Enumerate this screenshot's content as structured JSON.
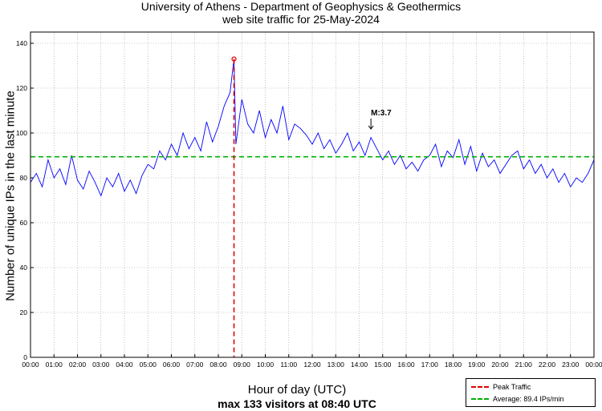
{
  "title": "University of Athens - Department of Geophysics & Geothermics",
  "subtitle": "web site traffic for 25-May-2024",
  "ylabel": "Number of unique IPs in the last minute",
  "xlabel": "Hour of day (UTC)",
  "summary": "max 133 visitors at 08:40 UTC",
  "annotation": "M:3.7",
  "legend": {
    "peak": "Peak Traffic",
    "average": "Average: 89.4 IPs/min"
  },
  "colors": {
    "series": "#0000ff",
    "peak": "#e00000",
    "average": "#00b000",
    "grid": "#9a9a9a"
  },
  "chart_data": {
    "type": "line",
    "title": "University of Athens - Department of Geophysics & Geothermics",
    "subtitle": "web site traffic for 25-May-2024",
    "xlabel": "Hour of day (UTC)",
    "ylabel": "Number of unique IPs in the last minute",
    "xlim": [
      0,
      24
    ],
    "ylim": [
      0,
      145
    ],
    "xticks": [
      "00:00",
      "01:00",
      "02:00",
      "03:00",
      "04:00",
      "05:00",
      "06:00",
      "07:00",
      "08:00",
      "09:00",
      "10:00",
      "11:00",
      "12:00",
      "13:00",
      "14:00",
      "15:00",
      "16:00",
      "17:00",
      "18:00",
      "19:00",
      "20:00",
      "21:00",
      "22:00",
      "23:00",
      "00:00"
    ],
    "yticks": [
      0,
      20,
      40,
      60,
      80,
      100,
      120,
      140
    ],
    "grid": true,
    "legend_position": "bottom-right",
    "peak": {
      "x": 8.667,
      "y": 133,
      "label": "Peak Traffic"
    },
    "average": {
      "y": 89.4,
      "label": "Average: 89.4 IPs/min"
    },
    "marker": {
      "x": 14.5,
      "y": 100,
      "label": "M:3.7"
    },
    "series": [
      {
        "x": [
          0,
          0.25,
          0.5,
          0.75,
          1,
          1.25,
          1.5,
          1.75,
          2,
          2.25,
          2.5,
          2.75,
          3,
          3.25,
          3.5,
          3.75,
          4,
          4.25,
          4.5,
          4.75,
          5,
          5.25,
          5.5,
          5.75,
          6,
          6.25,
          6.5,
          6.75,
          7,
          7.25,
          7.5,
          7.75,
          8,
          8.25,
          8.5,
          8.667,
          8.75,
          9,
          9.25,
          9.5,
          9.75,
          10,
          10.25,
          10.5,
          10.75,
          11,
          11.25,
          11.5,
          11.75,
          12,
          12.25,
          12.5,
          12.75,
          13,
          13.25,
          13.5,
          13.75,
          14,
          14.25,
          14.5,
          14.75,
          15,
          15.25,
          15.5,
          15.75,
          16,
          16.25,
          16.5,
          16.75,
          17,
          17.25,
          17.5,
          17.75,
          18,
          18.25,
          18.5,
          18.75,
          19,
          19.25,
          19.5,
          19.75,
          20,
          20.25,
          20.5,
          20.75,
          21,
          21.25,
          21.5,
          21.75,
          22,
          22.25,
          22.5,
          22.75,
          23,
          23.25,
          23.5,
          23.75,
          24
        ],
        "y": [
          78,
          82,
          76,
          88,
          80,
          84,
          77,
          90,
          79,
          75,
          83,
          78,
          72,
          80,
          76,
          82,
          74,
          79,
          73,
          81,
          86,
          84,
          92,
          88,
          95,
          90,
          100,
          93,
          98,
          92,
          105,
          96,
          103,
          112,
          118,
          133,
          95,
          115,
          104,
          100,
          110,
          98,
          106,
          100,
          112,
          97,
          104,
          102,
          99,
          95,
          100,
          93,
          97,
          91,
          95,
          100,
          92,
          96,
          90,
          98,
          93,
          88,
          92,
          86,
          90,
          84,
          87,
          83,
          88,
          90,
          95,
          85,
          92,
          89,
          97,
          86,
          94,
          83,
          91,
          85,
          88,
          82,
          86,
          90,
          92,
          84,
          88,
          82,
          86,
          80,
          84,
          78,
          82,
          76,
          80,
          78,
          82,
          88
        ]
      }
    ]
  }
}
